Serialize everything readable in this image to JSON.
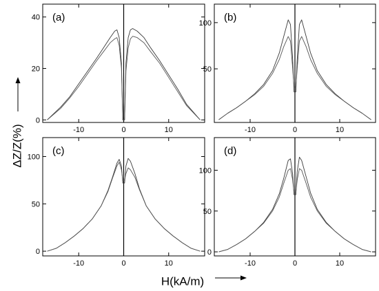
{
  "figure": {
    "ylabel": "ΔZ/Z(%)",
    "xlabel": "H(kA/m)"
  },
  "chart_data": [
    {
      "type": "line",
      "panel_label": "(a)",
      "xlim": [
        -18,
        18
      ],
      "ylim": [
        -1,
        45
      ],
      "xticks": [
        -10,
        0,
        10
      ],
      "yticks": [
        0,
        20,
        40
      ],
      "x_tick_labels": [
        "-10",
        "0",
        "10"
      ],
      "y_tick_labels": [
        "0",
        "20",
        "40"
      ],
      "grid": false,
      "peak_height": 35.5,
      "valley_height": -0.5,
      "series": [
        {
          "x": [
            -17,
            -14,
            -12,
            -10,
            -8,
            -6,
            -4.5,
            -3,
            -2,
            -1.5,
            -1,
            -0.5,
            -0.2,
            0.2,
            0.5,
            1,
            1.5,
            2,
            3,
            4.5,
            6,
            8,
            10,
            12,
            14,
            17
          ],
          "y": [
            0,
            5,
            9,
            14,
            19,
            24,
            28,
            32,
            34.5,
            35,
            32,
            22,
            0,
            0,
            22,
            32,
            35,
            35.5,
            34.5,
            32,
            28,
            23,
            17.5,
            12,
            6,
            0
          ]
        },
        {
          "x": [
            -17,
            -14,
            -12,
            -10,
            -8,
            -6,
            -4.5,
            -3,
            -2,
            -1.5,
            -1,
            -0.5,
            -0.2,
            0.2,
            0.5,
            1,
            1.5,
            2,
            3,
            4.5,
            6,
            8,
            10,
            12,
            14,
            17
          ],
          "y": [
            0,
            4.5,
            8.5,
            13,
            18,
            23,
            26.5,
            30,
            31.5,
            32,
            29,
            20,
            0,
            0,
            19,
            28,
            31.5,
            32.5,
            32,
            30,
            26.5,
            22,
            16.5,
            11,
            5.5,
            0
          ]
        }
      ]
    },
    {
      "type": "line",
      "panel_label": "(b)",
      "xlim": [
        -18,
        18
      ],
      "ylim": [
        -8,
        120
      ],
      "xticks": [
        -10,
        0,
        10
      ],
      "yticks": [
        50,
        100
      ],
      "x_tick_labels": [
        "-10",
        "0",
        "10"
      ],
      "y_tick_labels": [
        "50",
        "100"
      ],
      "grid": false,
      "peak_height": 103,
      "valley_height": 22,
      "series": [
        {
          "x": [
            -17,
            -15,
            -13,
            -11,
            -9,
            -7,
            -5,
            -3.5,
            -2.5,
            -1.5,
            -1,
            -0.5,
            -0.2,
            0.2,
            0.5,
            1,
            1.5,
            2.5,
            3.5,
            5,
            7,
            9,
            11,
            13,
            15,
            17
          ],
          "y": [
            -5,
            2,
            8,
            15,
            23,
            33,
            48,
            67,
            85,
            103,
            98,
            60,
            25,
            25,
            60,
            98,
            103,
            85,
            67,
            48,
            33,
            23,
            15,
            8,
            2,
            -5
          ]
        },
        {
          "x": [
            -17,
            -15,
            -13,
            -11,
            -9,
            -7,
            -5,
            -3.5,
            -2.5,
            -1.5,
            -1,
            -0.5,
            -0.2,
            0.2,
            0.5,
            1,
            1.5,
            2.5,
            3.5,
            5,
            7,
            9,
            11,
            13,
            15,
            17
          ],
          "y": [
            -5,
            2,
            8,
            15,
            22,
            31,
            45,
            60,
            74,
            85,
            80,
            50,
            30,
            30,
            50,
            80,
            85,
            74,
            60,
            45,
            31,
            22,
            15,
            8,
            2,
            -5
          ]
        }
      ]
    },
    {
      "type": "line",
      "panel_label": "(c)",
      "xlim": [
        -18,
        18
      ],
      "ylim": [
        -5,
        120
      ],
      "xticks": [
        -10,
        0,
        10
      ],
      "yticks": [
        0,
        50,
        100
      ],
      "x_tick_labels": [
        "-10",
        "0",
        "10"
      ],
      "y_tick_labels": [
        "0",
        "50",
        "100"
      ],
      "grid": false,
      "peak_height": 98,
      "valley_height": 70,
      "series": [
        {
          "x": [
            -17,
            -15,
            -13,
            -11,
            -9,
            -7,
            -5,
            -3.5,
            -2.5,
            -1.5,
            -1,
            -0.5,
            -0.2,
            0.2,
            0.5,
            1,
            1.5,
            2.5,
            3.5,
            5,
            7,
            9,
            11,
            13,
            15,
            17
          ],
          "y": [
            0,
            3,
            9,
            16,
            24,
            34,
            48,
            64,
            78,
            93,
            97,
            90,
            72,
            72,
            90,
            98,
            95,
            82,
            66,
            48,
            34,
            24,
            16,
            9,
            3,
            0
          ]
        },
        {
          "x": [
            -17,
            -15,
            -13,
            -11,
            -9,
            -7,
            -5,
            -3.5,
            -2.5,
            -1.5,
            -1,
            -0.5,
            -0.2,
            0.2,
            0.5,
            1,
            1.5,
            2.5,
            3.5,
            5,
            7,
            9,
            11,
            13,
            15,
            17
          ],
          "y": [
            0,
            3,
            9,
            16,
            24,
            34,
            48,
            63,
            77,
            90,
            94,
            86,
            75,
            75,
            82,
            88,
            86,
            78,
            65,
            48,
            34,
            24,
            16,
            9,
            3,
            0
          ]
        }
      ]
    },
    {
      "type": "line",
      "panel_label": "(d)",
      "xlim": [
        -18,
        18
      ],
      "ylim": [
        -5,
        140
      ],
      "xticks": [
        -10,
        0,
        10
      ],
      "yticks": [
        0,
        50,
        100
      ],
      "x_tick_labels": [
        "-10",
        "0",
        "10"
      ],
      "y_tick_labels": [
        "0",
        "50",
        "100"
      ],
      "grid": false,
      "peak_height": 116,
      "valley_height": 68,
      "series": [
        {
          "x": [
            -17,
            -15,
            -13,
            -11,
            -9,
            -7,
            -5,
            -3.5,
            -2.5,
            -1.5,
            -1,
            -0.5,
            -0.2,
            0.2,
            0.5,
            1,
            1.5,
            2.5,
            3.5,
            5,
            7,
            9,
            11,
            13,
            15,
            17
          ],
          "y": [
            0,
            3,
            9,
            16,
            25,
            36,
            52,
            71,
            90,
            112,
            114,
            95,
            70,
            70,
            98,
            116,
            112,
            92,
            72,
            52,
            36,
            25,
            16,
            9,
            3,
            0
          ]
        },
        {
          "x": [
            -17,
            -15,
            -13,
            -11,
            -9,
            -7,
            -5,
            -3.5,
            -2.5,
            -1.5,
            -1,
            -0.5,
            -0.2,
            0.2,
            0.5,
            1,
            1.5,
            2.5,
            3.5,
            5,
            7,
            9,
            11,
            13,
            15,
            17
          ],
          "y": [
            0,
            3,
            9,
            16,
            25,
            35,
            50,
            67,
            84,
            100,
            102,
            88,
            72,
            72,
            88,
            102,
            100,
            84,
            67,
            50,
            35,
            25,
            16,
            9,
            3,
            0
          ]
        }
      ]
    }
  ]
}
